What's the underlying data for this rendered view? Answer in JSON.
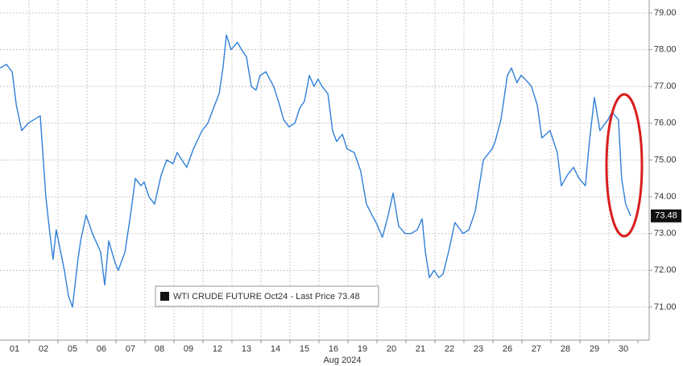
{
  "chart_data": {
    "type": "line",
    "legend": "WTI CRUDE FUTURE Oct24 - Last Price 73.48",
    "x_axis_label": "Aug 2024",
    "categories": [
      "01",
      "02",
      "05",
      "06",
      "07",
      "08",
      "09",
      "12",
      "13",
      "14",
      "15",
      "16",
      "19",
      "20",
      "21",
      "22",
      "23",
      "26",
      "27",
      "28",
      "29",
      "30"
    ],
    "series": [
      {
        "name": "WTI CRUDE FUTURE Oct24",
        "color": "#2f7fd8",
        "x": [
          0,
          0.22,
          0.42,
          0.56,
          0.75,
          0.97,
          1.39,
          1.58,
          1.72,
          1.83,
          1.94,
          2.22,
          2.36,
          2.5,
          2.69,
          2.78,
          2.97,
          3.19,
          3.47,
          3.61,
          3.75,
          3.97,
          4.08,
          4.31,
          4.5,
          4.67,
          4.86,
          4.97,
          5.14,
          5.33,
          5.56,
          5.75,
          5.97,
          6.11,
          6.44,
          6.67,
          6.97,
          7.17,
          7.36,
          7.56,
          7.69,
          7.81,
          7.97,
          8.19,
          8.33,
          8.5,
          8.67,
          8.83,
          8.97,
          9.17,
          9.44,
          9.64,
          9.78,
          9.97,
          10.17,
          10.33,
          10.5,
          10.67,
          10.83,
          10.97,
          11.11,
          11.31,
          11.47,
          11.61,
          11.81,
          11.97,
          12.22,
          12.44,
          12.64,
          12.83,
          12.97,
          13.19,
          13.39,
          13.56,
          13.75,
          13.97,
          14.17,
          14.39,
          14.56,
          14.67,
          14.81,
          14.97,
          15.14,
          15.28,
          15.47,
          15.69,
          15.97,
          16.17,
          16.39,
          16.53,
          16.67,
          16.97,
          17.08,
          17.28,
          17.5,
          17.64,
          17.83,
          17.97,
          18.11,
          18.33,
          18.53,
          18.69,
          18.97,
          19.22,
          19.36,
          19.58,
          19.78,
          19.97,
          20.19,
          20.33,
          20.5,
          20.69,
          20.97,
          21.11,
          21.33,
          21.44,
          21.58,
          21.75
        ],
        "values": [
          77.5,
          77.6,
          77.4,
          76.5,
          75.8,
          76.0,
          76.2,
          74.0,
          73.0,
          72.3,
          73.1,
          72.0,
          71.3,
          71.0,
          72.3,
          72.8,
          73.5,
          73.0,
          72.5,
          71.6,
          72.8,
          72.2,
          72.0,
          72.5,
          73.5,
          74.5,
          74.3,
          74.4,
          74.0,
          73.8,
          74.6,
          75.0,
          74.9,
          75.2,
          74.8,
          75.3,
          75.8,
          76.0,
          76.4,
          76.8,
          77.5,
          78.4,
          78.0,
          78.2,
          78.0,
          77.8,
          77.0,
          76.9,
          77.3,
          77.4,
          77.0,
          76.5,
          76.1,
          75.9,
          76.0,
          76.4,
          76.6,
          77.3,
          77.0,
          77.2,
          77.0,
          76.8,
          75.8,
          75.5,
          75.7,
          75.3,
          75.2,
          74.7,
          73.8,
          73.5,
          73.3,
          72.9,
          73.5,
          74.1,
          73.2,
          73.0,
          73.0,
          73.1,
          73.4,
          72.5,
          71.8,
          72.0,
          71.8,
          71.9,
          72.5,
          73.3,
          73.0,
          73.1,
          73.6,
          74.3,
          75.0,
          75.3,
          75.5,
          76.1,
          77.3,
          77.5,
          77.1,
          77.3,
          77.2,
          77.0,
          76.5,
          75.6,
          75.8,
          75.2,
          74.3,
          74.6,
          74.8,
          74.5,
          74.3,
          75.5,
          76.7,
          75.8,
          76.1,
          76.3,
          76.1,
          74.5,
          73.8,
          73.48
        ]
      }
    ],
    "last_price": {
      "value": 73.48,
      "label": "73.48"
    },
    "xlim": [
      0,
      22.39
    ],
    "ylim": [
      70.1,
      79.35
    ],
    "yticks": [
      {
        "value": 71,
        "label": "71.00"
      },
      {
        "value": 72,
        "label": "72.00"
      },
      {
        "value": 73,
        "label": "73.00"
      },
      {
        "value": 74,
        "label": "74.00"
      },
      {
        "value": 75,
        "label": "75.00"
      },
      {
        "value": 76,
        "label": "76.00"
      },
      {
        "value": 77,
        "label": "77.00"
      },
      {
        "value": 78,
        "label": "78.00"
      },
      {
        "value": 79,
        "label": "79.00"
      }
    ],
    "grid": true
  }
}
